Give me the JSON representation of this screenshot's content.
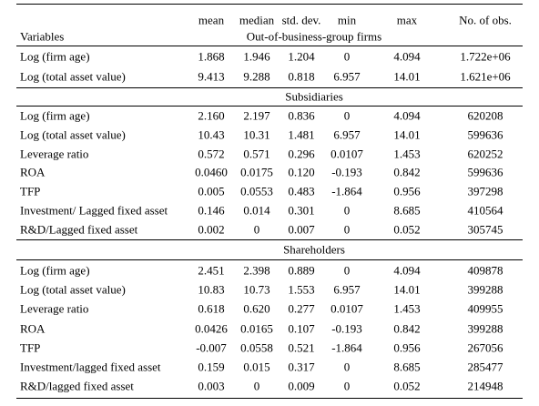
{
  "header": {
    "columns": [
      "Variables",
      "mean",
      "median",
      "std. dev.",
      "min",
      "max",
      "No. of obs."
    ]
  },
  "sections": [
    {
      "title": "Out-of-business-group firms",
      "rows": [
        [
          "Log (firm age)",
          "1.868",
          "1.946",
          "1.204",
          "0",
          "4.094",
          "1.722e+06"
        ],
        [
          "Log (total asset value)",
          "9.413",
          "9.288",
          "0.818",
          "6.957",
          "14.01",
          "1.621e+06"
        ]
      ]
    },
    {
      "title": "Subsidiaries",
      "rows": [
        [
          "Log (firm age)",
          "2.160",
          "2.197",
          "0.836",
          "0",
          "4.094",
          "620208"
        ],
        [
          "Log (total asset value)",
          "10.43",
          "10.31",
          "1.481",
          "6.957",
          "14.01",
          "599636"
        ],
        [
          "Leverage ratio",
          "0.572",
          "0.571",
          "0.296",
          "0.0107",
          "1.453",
          "620252"
        ],
        [
          "ROA",
          "0.0460",
          "0.0175",
          "0.120",
          "-0.193",
          "0.842",
          "599636"
        ],
        [
          "TFP",
          "0.005",
          "0.0553",
          "0.483",
          "-1.864",
          "0.956",
          "397298"
        ],
        [
          "Investment/ Lagged fixed asset",
          "0.146",
          "0.014",
          "0.301",
          "0",
          "8.685",
          "410564"
        ],
        [
          "R&D/Lagged fixed asset",
          "0.002",
          "0",
          "0.007",
          "0",
          "0.052",
          "305745"
        ]
      ]
    },
    {
      "title": "Shareholders",
      "rows": [
        [
          "Log (firm age)",
          "2.451",
          "2.398",
          "0.889",
          "0",
          "4.094",
          "409878"
        ],
        [
          "Log (total asset value)",
          "10.83",
          "10.73",
          "1.553",
          "6.957",
          "14.01",
          "399288"
        ],
        [
          "Leverage ratio",
          "0.618",
          "0.620",
          "0.277",
          "0.0107",
          "1.453",
          "409955"
        ],
        [
          "ROA",
          "0.0426",
          "0.0165",
          "0.107",
          "-0.193",
          "0.842",
          "399288"
        ],
        [
          "TFP",
          "-0.007",
          "0.0558",
          "0.521",
          "-1.864",
          "0.956",
          "267056"
        ],
        [
          "Investment/lagged fixed asset",
          "0.159",
          "0.015",
          "0.317",
          "0",
          "8.685",
          "285477"
        ],
        [
          "R&D/lagged fixed asset",
          "0.003",
          "0",
          "0.009",
          "0",
          "0.052",
          "214948"
        ]
      ]
    }
  ]
}
